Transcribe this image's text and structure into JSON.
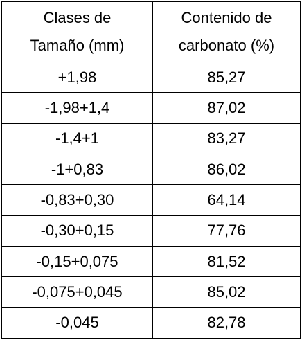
{
  "table": {
    "headers": [
      [
        "Clases de",
        "Tamaño (mm)"
      ],
      [
        "Contenido de",
        "carbonato (%)"
      ]
    ],
    "rows": [
      [
        "+1,98",
        "85,27"
      ],
      [
        "-1,98+1,4",
        "87,02"
      ],
      [
        "-1,4+1",
        "83,27"
      ],
      [
        "-1+0,83",
        "86,02"
      ],
      [
        "-0,83+0,30",
        "64,14"
      ],
      [
        "-0,30+0,15",
        "77,76"
      ],
      [
        "-0,15+0,075",
        "81,52"
      ],
      [
        "-0,075+0,045",
        "85,02"
      ],
      [
        "-0,045",
        "82,78"
      ]
    ]
  }
}
